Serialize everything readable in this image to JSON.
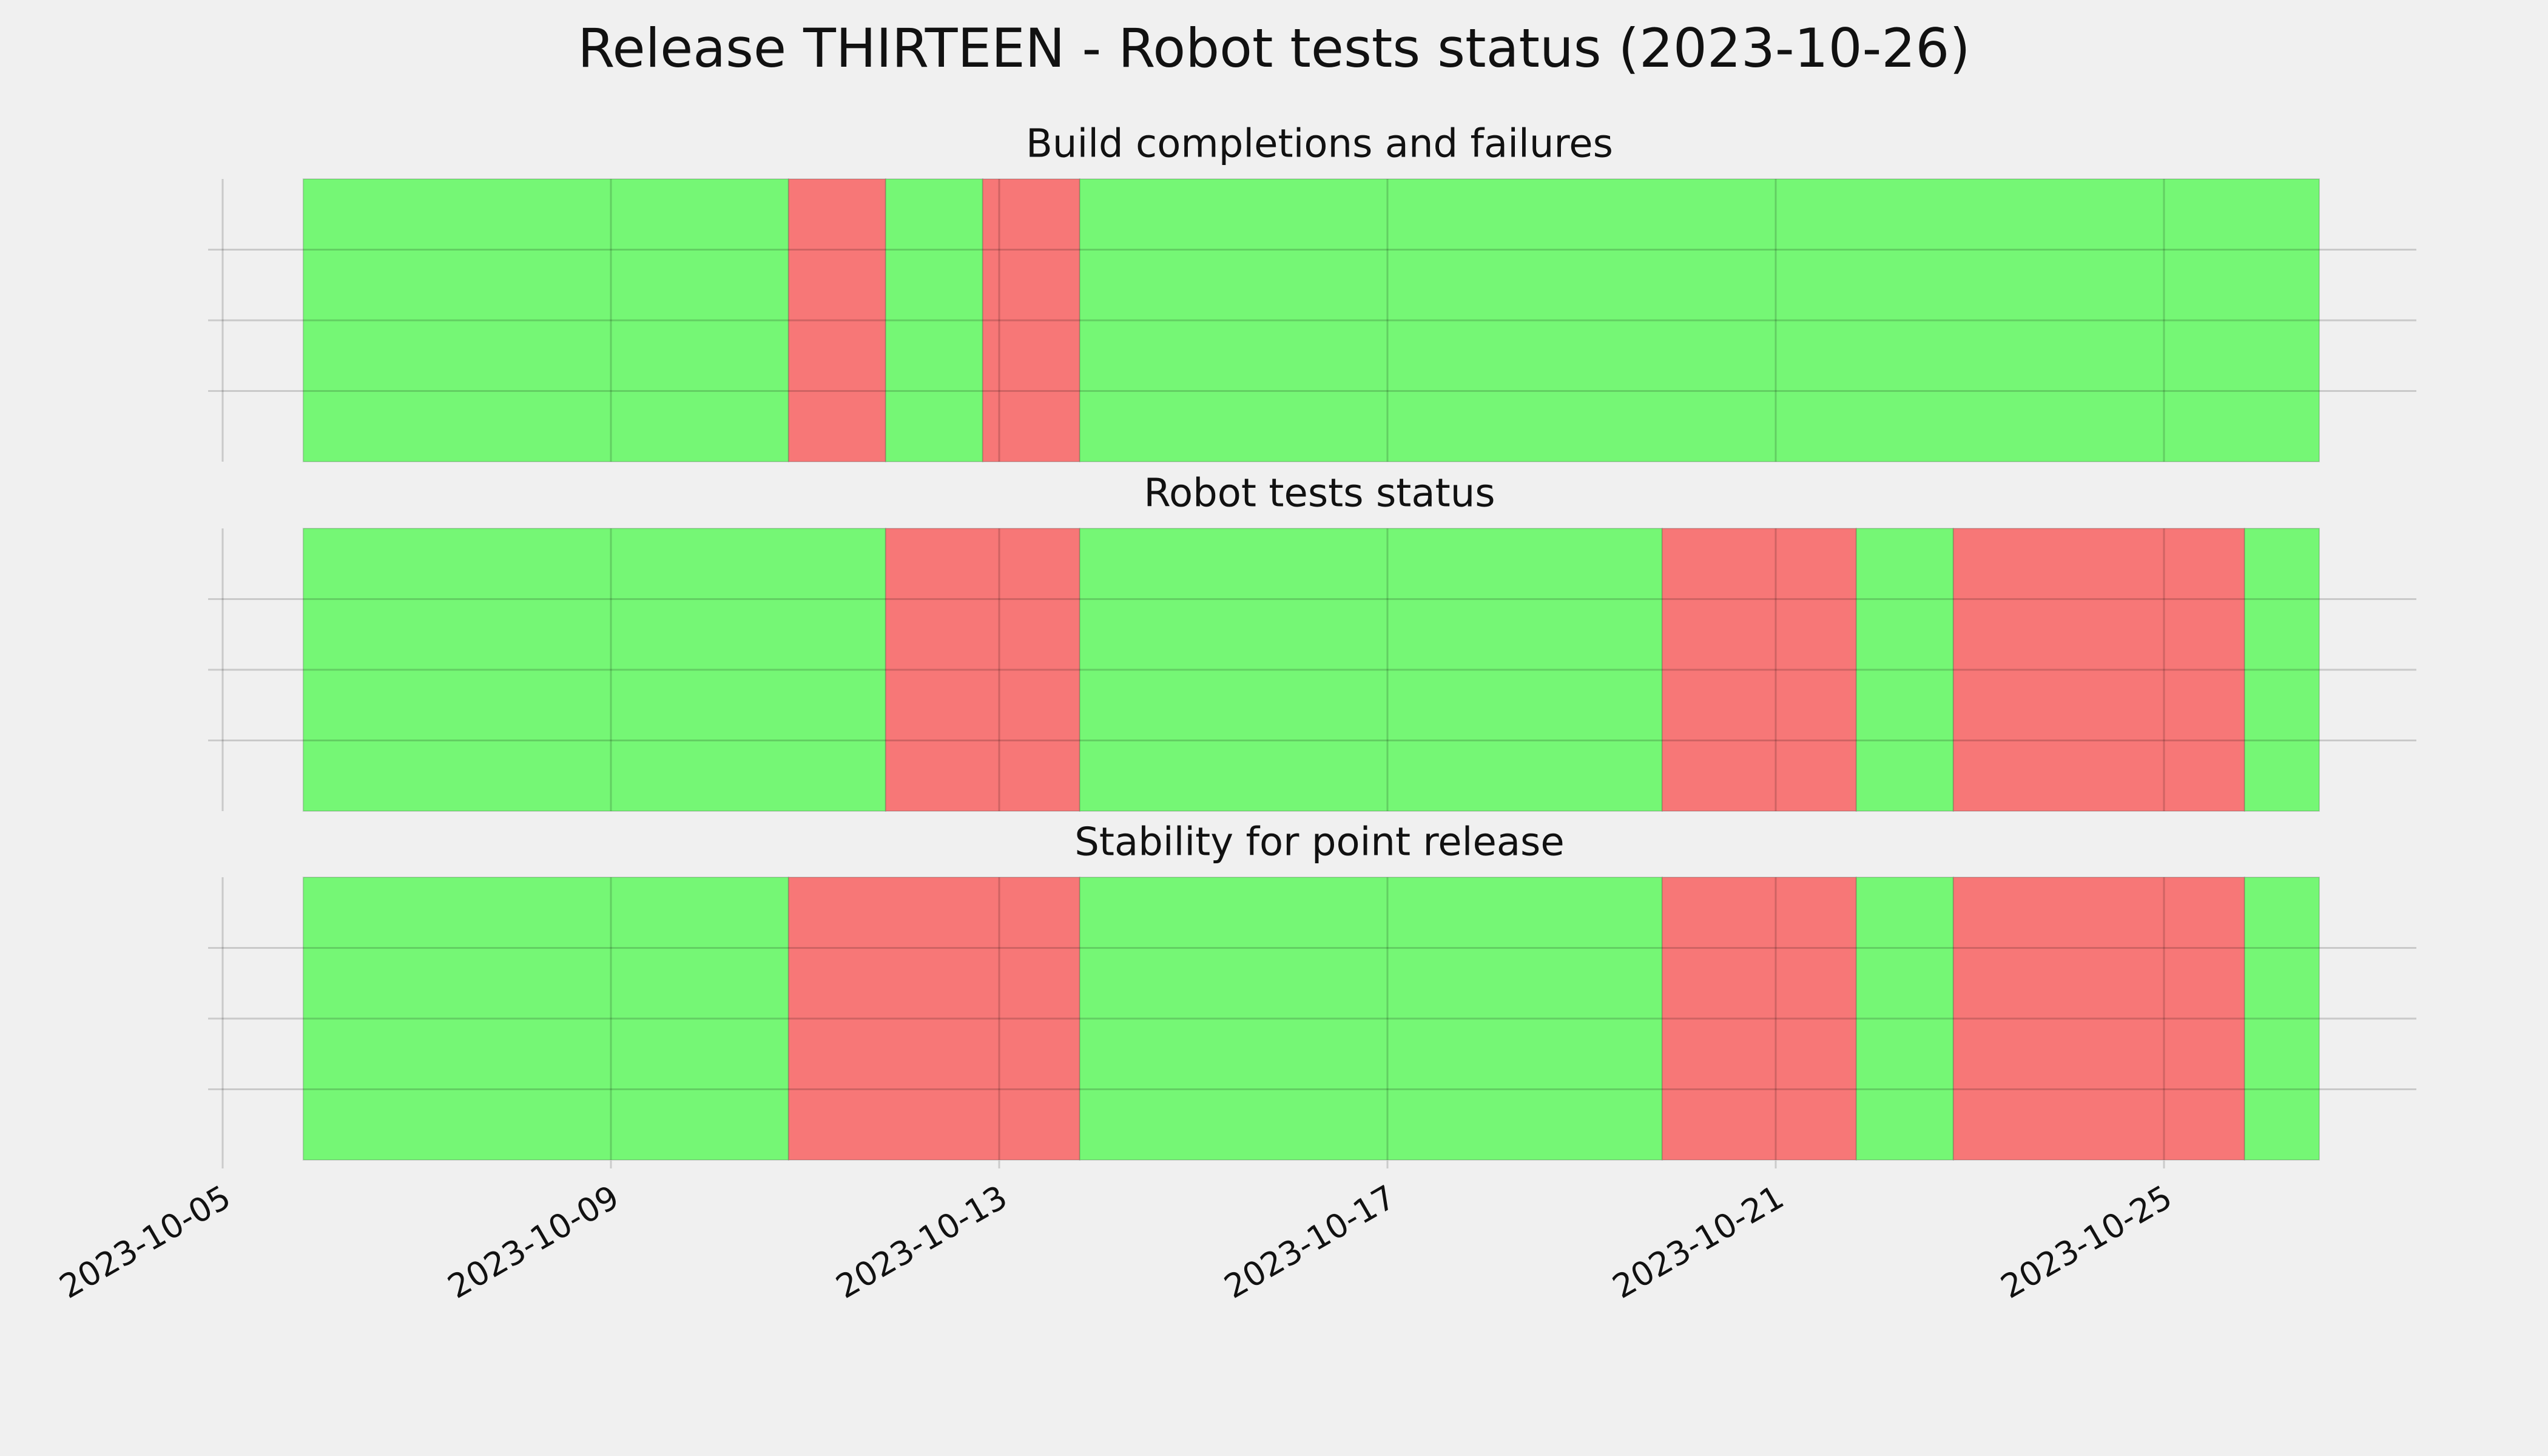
{
  "title": "Release THIRTEEN - Robot tests status (2023-10-26)",
  "chart_data": [
    {
      "type": "timeline",
      "title": "Build completions and failures",
      "starts": [
        0.83,
        5.83,
        6.83,
        7.83,
        8.83
      ],
      "ends": [
        5.83,
        6.83,
        7.83,
        8.83,
        21.6
      ],
      "colors": [
        "#75f775",
        "#f77777",
        "#75f775",
        "#f77777",
        "#75f775"
      ],
      "xlim": [
        0,
        22.6
      ],
      "xticks": [
        {
          "value": 0,
          "label": "2023-10-05"
        },
        {
          "value": 4,
          "label": "2023-10-09"
        },
        {
          "value": 8,
          "label": "2023-10-13"
        },
        {
          "value": 12,
          "label": "2023-10-17"
        },
        {
          "value": 16,
          "label": "2023-10-21"
        },
        {
          "value": 20,
          "label": "2023-10-25"
        }
      ],
      "ylim": [
        0,
        1
      ],
      "yticks": [
        0.25,
        0.5,
        0.75
      ],
      "grid": true
    },
    {
      "type": "timeline",
      "title": "Robot tests status",
      "starts": [
        0.83,
        6.83,
        8.83,
        14.83,
        16.83,
        17.83,
        20.83
      ],
      "ends": [
        6.83,
        8.83,
        14.83,
        16.83,
        17.83,
        20.83,
        21.6
      ],
      "colors": [
        "#75f775",
        "#f77777",
        "#75f775",
        "#f77777",
        "#75f775",
        "#f77777",
        "#75f775"
      ],
      "xlim": [
        0,
        22.6
      ],
      "xticks": [
        {
          "value": 0,
          "label": "2023-10-05"
        },
        {
          "value": 4,
          "label": "2023-10-09"
        },
        {
          "value": 8,
          "label": "2023-10-13"
        },
        {
          "value": 12,
          "label": "2023-10-17"
        },
        {
          "value": 16,
          "label": "2023-10-21"
        },
        {
          "value": 20,
          "label": "2023-10-25"
        }
      ],
      "ylim": [
        0,
        1
      ],
      "yticks": [
        0.25,
        0.5,
        0.75
      ],
      "grid": true
    },
    {
      "type": "timeline",
      "title": "Stability for point release",
      "starts": [
        0.83,
        5.83,
        8.83,
        14.83,
        16.83,
        17.83,
        20.83
      ],
      "ends": [
        5.83,
        8.83,
        14.83,
        16.83,
        17.83,
        20.83,
        21.6
      ],
      "colors": [
        "#75f775",
        "#f77777",
        "#75f775",
        "#f77777",
        "#75f775",
        "#f77777",
        "#75f775"
      ],
      "xlim": [
        0,
        22.6
      ],
      "xticks": [
        {
          "value": 0,
          "label": "2023-10-05"
        },
        {
          "value": 4,
          "label": "2023-10-09"
        },
        {
          "value": 8,
          "label": "2023-10-13"
        },
        {
          "value": 12,
          "label": "2023-10-17"
        },
        {
          "value": 16,
          "label": "2023-10-21"
        },
        {
          "value": 20,
          "label": "2023-10-25"
        }
      ],
      "ylim": [
        0,
        1
      ],
      "yticks": [
        0.25,
        0.5,
        0.75
      ],
      "grid": true,
      "show_xtick_labels": true
    }
  ]
}
